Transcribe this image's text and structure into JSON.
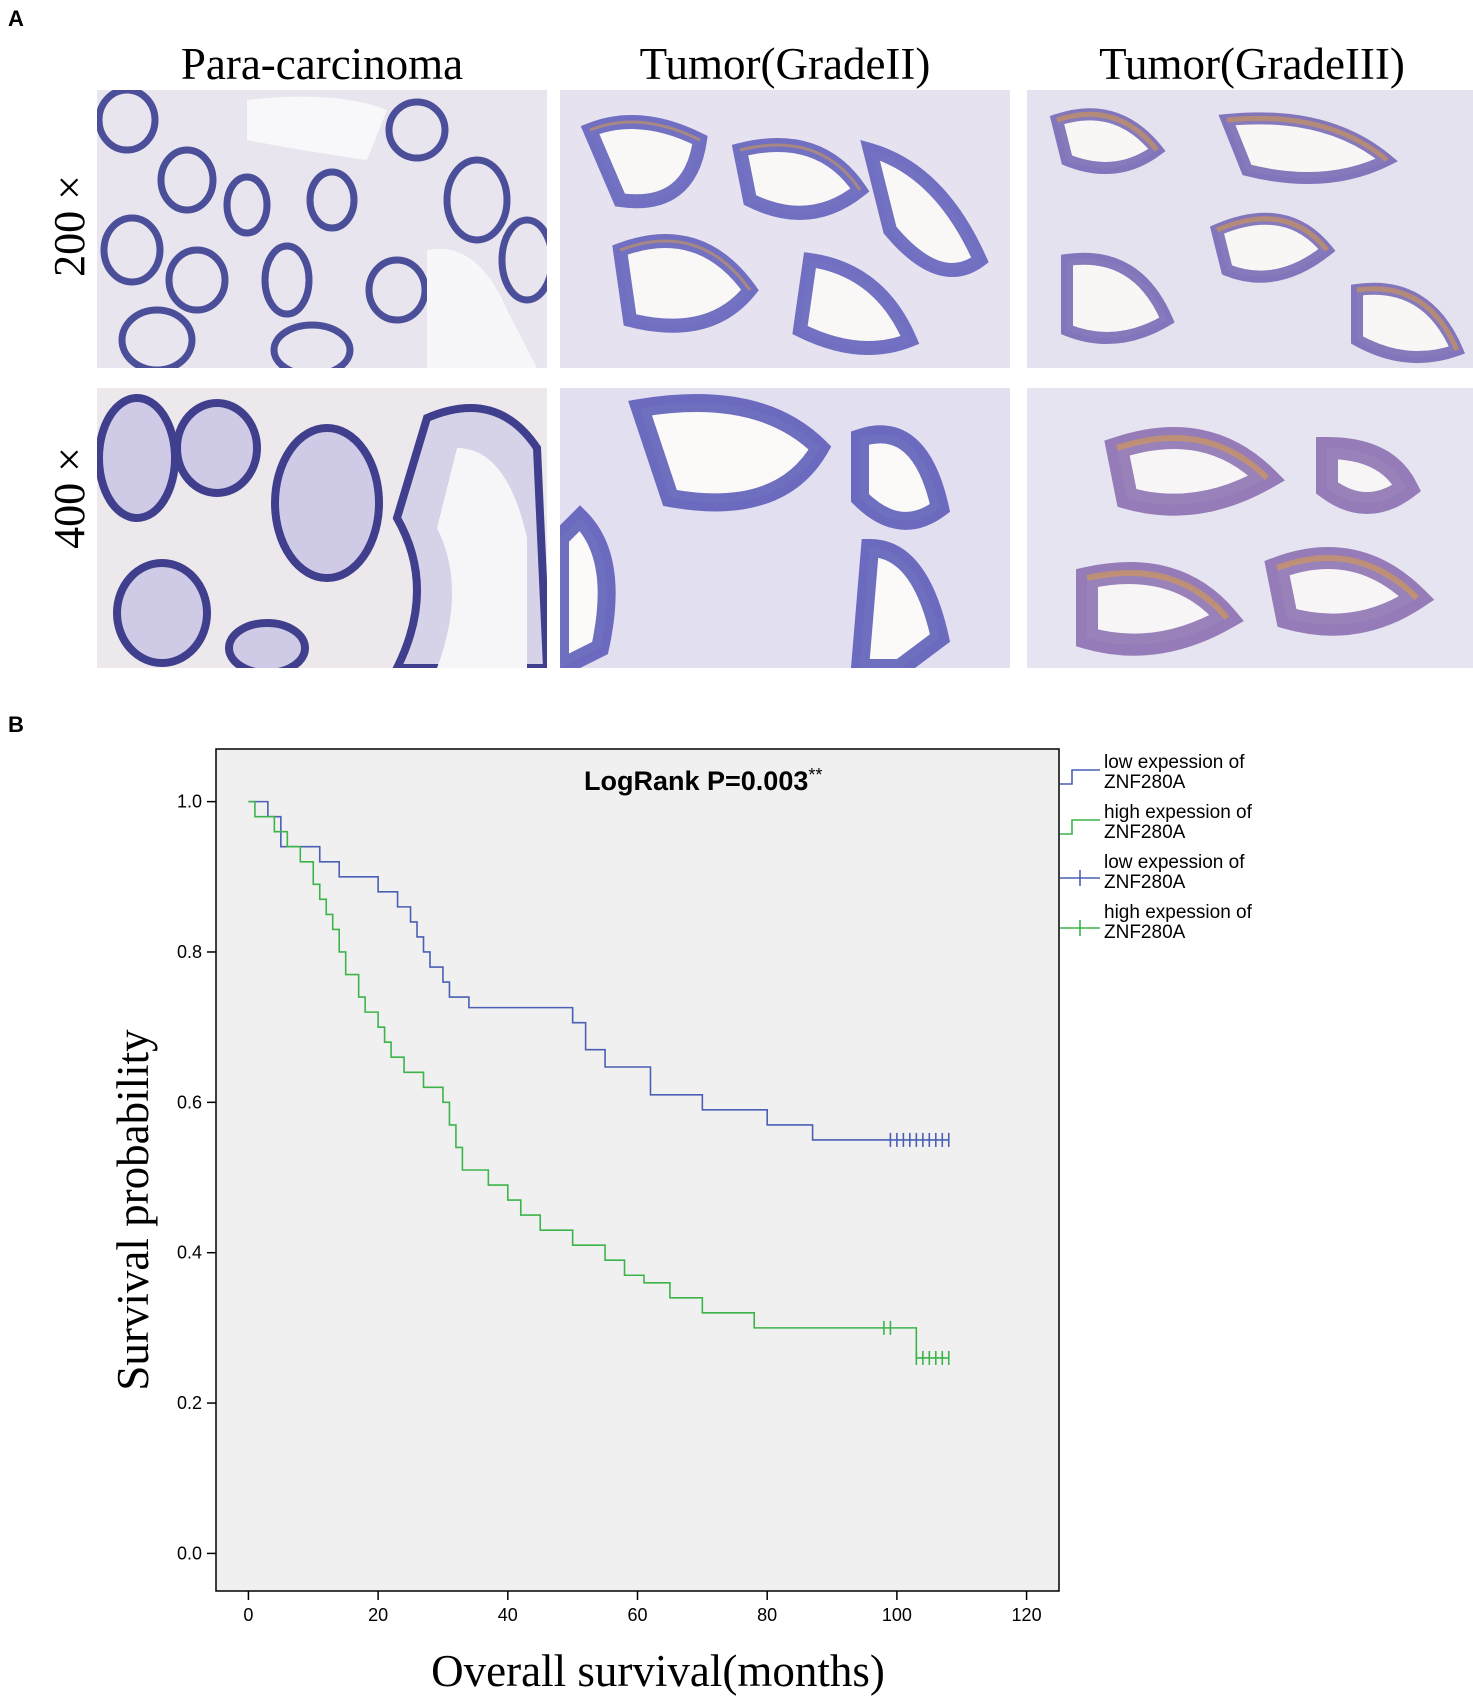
{
  "figure": {
    "panel_a_letter": "A",
    "panel_b_letter": "B",
    "columns": [
      "Para-carcinoma",
      "Tumor(GradeII)",
      "Tumor(GradeIII)"
    ],
    "rows": [
      "200 ×",
      "400 ×"
    ]
  },
  "chart_data": {
    "type": "line",
    "annotation": "LogRank P=0.003",
    "annotation_suffix": "**",
    "xlabel": "Overall survival(months)",
    "ylabel": "Survival probability",
    "xlim": [
      -5,
      125
    ],
    "ylim": [
      -0.05,
      1.07
    ],
    "xticks": [
      0,
      20,
      40,
      60,
      80,
      100,
      120
    ],
    "yticks": [
      0.0,
      0.2,
      0.4,
      0.6,
      0.8,
      1.0
    ],
    "ytick_labels": [
      "0.0",
      "0.2",
      "0.4",
      "0.6",
      "0.8",
      "1.0"
    ],
    "grid": false,
    "legend_position": "right-outside",
    "legend": [
      {
        "label_line1": "low expession of",
        "label_line2": "ZNF280A",
        "symbol": "step",
        "color": "#4a5fb5"
      },
      {
        "label_line1": "high expession of",
        "label_line2": "ZNF280A",
        "symbol": "step",
        "color": "#3cb44a"
      },
      {
        "label_line1": "low expession of",
        "label_line2": "ZNF280A",
        "symbol": "censor",
        "color": "#4a5fb5"
      },
      {
        "label_line1": "high expession of",
        "label_line2": "ZNF280A",
        "symbol": "censor",
        "color": "#3cb44a"
      }
    ],
    "series": [
      {
        "name": "low expession of ZNF280A",
        "color": "#4a5fb5",
        "steps": [
          [
            0,
            1.0
          ],
          [
            3,
            0.98
          ],
          [
            5,
            0.94
          ],
          [
            11,
            0.92
          ],
          [
            14,
            0.9
          ],
          [
            20,
            0.88
          ],
          [
            23,
            0.86
          ],
          [
            25,
            0.84
          ],
          [
            26,
            0.82
          ],
          [
            27,
            0.8
          ],
          [
            28,
            0.78
          ],
          [
            30,
            0.76
          ],
          [
            31,
            0.74
          ],
          [
            34,
            0.726
          ],
          [
            50,
            0.706
          ],
          [
            52,
            0.67
          ],
          [
            55,
            0.647
          ],
          [
            62,
            0.61
          ],
          [
            70,
            0.59
          ],
          [
            80,
            0.57
          ],
          [
            87,
            0.55
          ],
          [
            108,
            0.55
          ]
        ],
        "censored": [
          99,
          100,
          101,
          102,
          103,
          104,
          105,
          106,
          107,
          108
        ]
      },
      {
        "name": "high expession of ZNF280A",
        "color": "#3cb44a",
        "steps": [
          [
            0,
            1.0
          ],
          [
            1,
            0.98
          ],
          [
            4,
            0.96
          ],
          [
            6,
            0.94
          ],
          [
            8,
            0.92
          ],
          [
            10,
            0.89
          ],
          [
            11,
            0.87
          ],
          [
            12,
            0.85
          ],
          [
            13,
            0.83
          ],
          [
            14,
            0.8
          ],
          [
            15,
            0.77
          ],
          [
            17,
            0.74
          ],
          [
            18,
            0.72
          ],
          [
            20,
            0.7
          ],
          [
            21,
            0.68
          ],
          [
            22,
            0.66
          ],
          [
            24,
            0.64
          ],
          [
            27,
            0.62
          ],
          [
            30,
            0.6
          ],
          [
            31,
            0.57
          ],
          [
            32,
            0.54
          ],
          [
            33,
            0.51
          ],
          [
            37,
            0.49
          ],
          [
            40,
            0.47
          ],
          [
            42,
            0.45
          ],
          [
            45,
            0.43
          ],
          [
            50,
            0.41
          ],
          [
            55,
            0.39
          ],
          [
            58,
            0.37
          ],
          [
            61,
            0.36
          ],
          [
            65,
            0.34
          ],
          [
            70,
            0.32
          ],
          [
            78,
            0.3
          ],
          [
            103,
            0.3
          ],
          [
            103,
            0.26
          ],
          [
            108,
            0.26
          ]
        ],
        "censored": [
          98,
          99,
          103,
          104,
          105,
          106,
          107,
          108
        ]
      }
    ]
  }
}
